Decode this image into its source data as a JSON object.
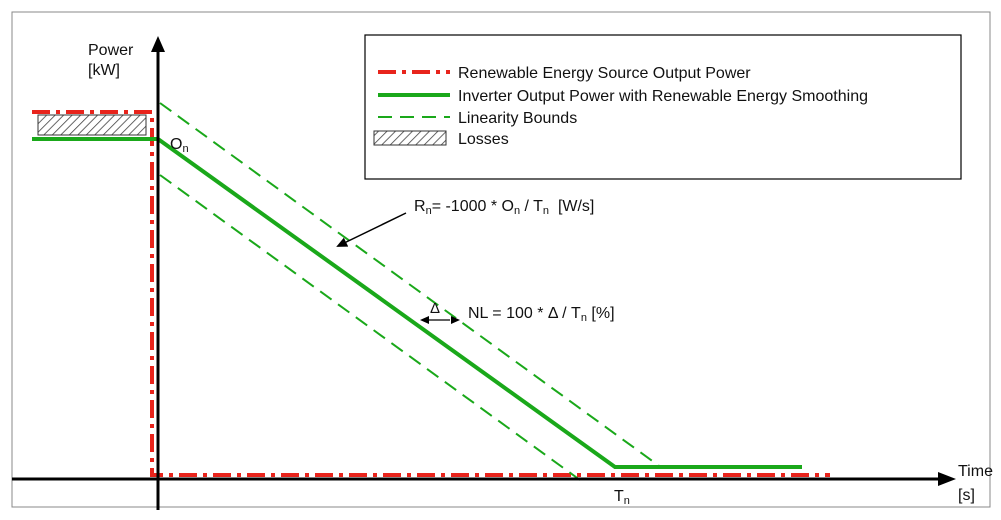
{
  "axes": {
    "y_label_line1": "Power",
    "y_label_line2": "[kW]",
    "x_label_line1": "Time",
    "x_label_line2": "[s]",
    "x_tick_T": "T",
    "x_tick_sub": "n"
  },
  "legend": {
    "items": [
      {
        "label": "Renewable Energy Source Output Power",
        "style": "dash-dot",
        "color": "#e8241c"
      },
      {
        "label": "Inverter Output Power with Renewable Energy Smoothing",
        "style": "solid",
        "color": "#1aa81a"
      },
      {
        "label": "Linearity Bounds",
        "style": "dashed",
        "color": "#1aa81a"
      },
      {
        "label": "Losses",
        "style": "hatched",
        "color": "#333333"
      }
    ]
  },
  "annotations": {
    "start_point": {
      "main": "O",
      "sub": "n"
    },
    "ramp_rate": {
      "r": "R",
      "r_sub": "n",
      "eq": "= -1000 * O",
      "o_sub": "n",
      "slash": " / T",
      "t_sub": "n",
      "unit": "  [W/s]"
    },
    "delta_symbol": "Δ",
    "nonlinearity": {
      "text": "NL = 100 * Δ / T",
      "t_sub": "n",
      "unit": " [%]"
    }
  },
  "colors": {
    "source_red": "#e8241c",
    "inverter_green": "#1aa81a",
    "axis_black": "#000000",
    "frame_gray": "#888888"
  }
}
